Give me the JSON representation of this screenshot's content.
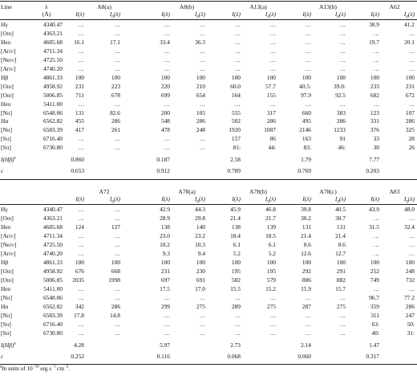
{
  "panel1": {
    "line_header": "Line",
    "wl_header": "λ",
    "wl_unit": "(Å)",
    "objects": [
      "A8(a)",
      "A8(b)",
      "A13(a)",
      "A13(b)",
      "A62"
    ],
    "sub_i": "I(λ)",
    "sub_i0": "I 0(λ)",
    "rows": [
      {
        "line": "Hγ",
        "wl": "4340.47",
        "v": [
          "…",
          "…",
          "…",
          "…",
          "…",
          "…",
          "…",
          "…",
          "38.9",
          "41.2"
        ]
      },
      {
        "line": "[O III]",
        "wl": "4363.21",
        "v": [
          "…",
          "…",
          "…",
          "…",
          "…",
          "…",
          "…",
          "…",
          "…",
          "…"
        ]
      },
      {
        "line": "He II",
        "wl": "4685.68",
        "v": [
          "16.1",
          "17.1",
          "33.4",
          "36.3",
          "…",
          "…",
          "…",
          "…",
          "19.7",
          "20.1"
        ]
      },
      {
        "line": "[Ar IV]",
        "wl": "4711.34",
        "v": [
          "…",
          "…",
          "…",
          "…",
          "…",
          "…",
          "…",
          "…",
          "…",
          "…"
        ]
      },
      {
        "line": "[Ne IV]",
        "wl": "4725.50",
        "v": [
          "…",
          "…",
          "…",
          "…",
          "…",
          "…",
          "…",
          "…",
          "…",
          "…"
        ]
      },
      {
        "line": "[Ar IV]",
        "wl": "4740.20",
        "v": [
          "…",
          "…",
          "…",
          "…",
          "…",
          "…",
          "…",
          "…",
          "…",
          "…"
        ]
      },
      {
        "line": "Hβ",
        "wl": "4861.33",
        "v": [
          "100",
          "100",
          "100",
          "100",
          "100",
          "100",
          "100",
          "100",
          "100",
          "100"
        ]
      },
      {
        "line": "[O III]",
        "wl": "4958.92",
        "v": [
          "231",
          "223",
          "220",
          "210",
          "60.0",
          "57.7",
          "40.5:",
          "39.0:",
          "233",
          "231"
        ]
      },
      {
        "line": "[O III]",
        "wl": "5006.85",
        "v": [
          "711",
          "678",
          "699",
          "654",
          "164",
          "155",
          "97.9",
          "92.5",
          "682",
          "672"
        ]
      },
      {
        "line": "He II",
        "wl": "5411.00",
        "v": [
          "…",
          "…",
          "…",
          "…",
          "…",
          "…",
          "…",
          "…",
          "…",
          "…"
        ]
      },
      {
        "line": "[N II]",
        "wl": "6548.06",
        "v": [
          "131",
          "82.6",
          "200",
          "105",
          "555",
          "317",
          "660",
          "383",
          "123",
          "107"
        ]
      },
      {
        "line": "Hα",
        "wl": "6562.82",
        "v": [
          "455",
          "286",
          "548",
          "286",
          "502",
          "286",
          "495",
          "286",
          "331",
          "286"
        ]
      },
      {
        "line": "[N II]",
        "wl": "6583.39",
        "v": [
          "417",
          "261",
          "478",
          "248",
          "1920",
          "1087",
          "2146",
          "1233",
          "376",
          "325"
        ]
      },
      {
        "line": "[S II]",
        "wl": "6716.40",
        "v": [
          "…",
          "…",
          "…",
          "…",
          "157",
          "86",
          "163",
          "91",
          "33",
          "28"
        ]
      },
      {
        "line": "[S II]",
        "wl": "6730.80",
        "v": [
          "…",
          "…",
          "…",
          "…",
          "81:",
          "44:",
          "83:",
          "46:",
          "30",
          "26"
        ]
      }
    ],
    "ihb_label": "I(Hβ)",
    "ihb": [
      "0.860",
      "0.187",
      "2.58",
      "1.79",
      "7.77"
    ],
    "c_label": "c",
    "c": [
      "0.653",
      "0.912",
      "0.789",
      "0.769",
      "0.203"
    ]
  },
  "panel2": {
    "objects": [
      "A72",
      "A78(a)",
      "A78(b)",
      "A78(c)",
      "A83"
    ],
    "sub_i": "I(λ)",
    "sub_i0": "I 0(λ)",
    "rows": [
      {
        "line": "Hγ",
        "wl": "4340.47",
        "v": [
          "…",
          "…",
          "42.9",
          "44.3",
          "45.9",
          "46.8",
          "39.8",
          "40.5",
          "43.9",
          "48.0"
        ]
      },
      {
        "line": "[O III]",
        "wl": "4363.21",
        "v": [
          "…",
          "…",
          "28.9",
          "29.8",
          "21.4",
          "21.7",
          "30.2",
          "30.7",
          "…",
          "…"
        ]
      },
      {
        "line": "He II",
        "wl": "4685.68",
        "v": [
          "124",
          "127",
          "138",
          "140",
          "138",
          "139",
          "131",
          "131",
          "31.5",
          "32.4"
        ]
      },
      {
        "line": "[Ar IV]",
        "wl": "4711.34",
        "v": [
          "…",
          "…",
          "23.0",
          "23.2",
          "18.4",
          "18.5",
          "21.4",
          "21.4",
          "…",
          "…"
        ]
      },
      {
        "line": "[Ne IV]",
        "wl": "4725.50",
        "v": [
          "…",
          "…",
          "10.2",
          "10.3",
          "6.1",
          "6.1",
          "8.6",
          "8.6",
          "…",
          "…"
        ]
      },
      {
        "line": "[Ar IV]",
        "wl": "4740.20",
        "v": [
          "…",
          "…",
          "9.3",
          "9.4",
          "5.2",
          "5.2",
          "12.6",
          "12.7",
          "…",
          "…"
        ]
      },
      {
        "line": "Hβ",
        "wl": "4861.33",
        "v": [
          "100",
          "100",
          "100",
          "100",
          "100",
          "100",
          "100",
          "100",
          "100",
          "100"
        ]
      },
      {
        "line": "[O III]",
        "wl": "4958.92",
        "v": [
          "676",
          "668",
          "231",
          "230",
          "195",
          "195",
          "292",
          "291",
          "252",
          "248"
        ]
      },
      {
        "line": "[O III]",
        "wl": "5006.85",
        "v": [
          "2035",
          "1998",
          "697",
          "691",
          "582",
          "579",
          "886",
          "882",
          "749",
          "732"
        ]
      },
      {
        "line": "He II",
        "wl": "5411.00",
        "v": [
          "…",
          "…",
          "17.5",
          "17.0",
          "15.5",
          "15.2",
          "15.9",
          "15.7",
          "…",
          "…"
        ]
      },
      {
        "line": "[N II]",
        "wl": "6548.06",
        "v": [
          "…",
          "…",
          "…",
          "…",
          "…",
          "…",
          "…",
          "…",
          "96.7",
          "77.2"
        ]
      },
      {
        "line": "Hα",
        "wl": "6562.82",
        "v": [
          "342",
          "286",
          "299",
          "275",
          "289",
          "275",
          "287",
          "275",
          "359",
          "286"
        ]
      },
      {
        "line": "[N II]",
        "wl": "6583.39",
        "v": [
          "17.8",
          "14.8",
          "…",
          "…",
          "…",
          "…",
          "…",
          "…",
          "311",
          "247"
        ]
      },
      {
        "line": "[S II]",
        "wl": "6716.40",
        "v": [
          "…",
          "…",
          "…",
          "…",
          "…",
          "…",
          "…",
          "…",
          "63:",
          "50:"
        ]
      },
      {
        "line": "[S II]",
        "wl": "6730.80",
        "v": [
          "…",
          "…",
          "…",
          "…",
          "…",
          "…",
          "…",
          "…",
          "40:",
          "31:"
        ]
      }
    ],
    "ihb": [
      "4.28",
      "5.97",
      "2.73",
      "2.14",
      "1.47"
    ],
    "c": [
      "0.252",
      "0.116",
      "0.068",
      "0.060",
      "0.317"
    ]
  },
  "footnote": {
    "mark": "a",
    "text": "In units of 10",
    "exp1": "−18",
    "mid": " erg s",
    "exp2": "−1",
    "mid2": " cm",
    "exp3": "−2",
    "end": "."
  }
}
